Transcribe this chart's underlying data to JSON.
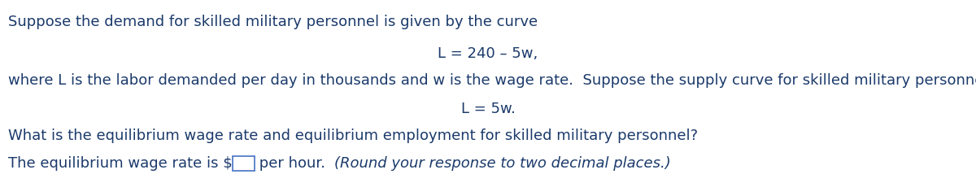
{
  "bg_color": "#ffffff",
  "line1": "Suppose the demand for skilled military personnel is given by the curve",
  "line2": "L = 240 – 5w,",
  "line3": "where L is the labor demanded per day in thousands and w is the wage rate.  Suppose the supply curve for skilled military personnel is given by",
  "line4": "L = 5w.",
  "line5": "What is the equilibrium wage rate and equilibrium employment for skilled military personnel?",
  "line6_part1": "The equilibrium wage rate is $",
  "line6_part2": " per hour.  ",
  "line6_part3": "(Round your response to two decimal places.)",
  "text_color": "#1b3a6b",
  "box_color": "#4472c4",
  "font_size": 13.0,
  "fig_width": 12.0,
  "fig_height": 2.41,
  "dpi": 100
}
